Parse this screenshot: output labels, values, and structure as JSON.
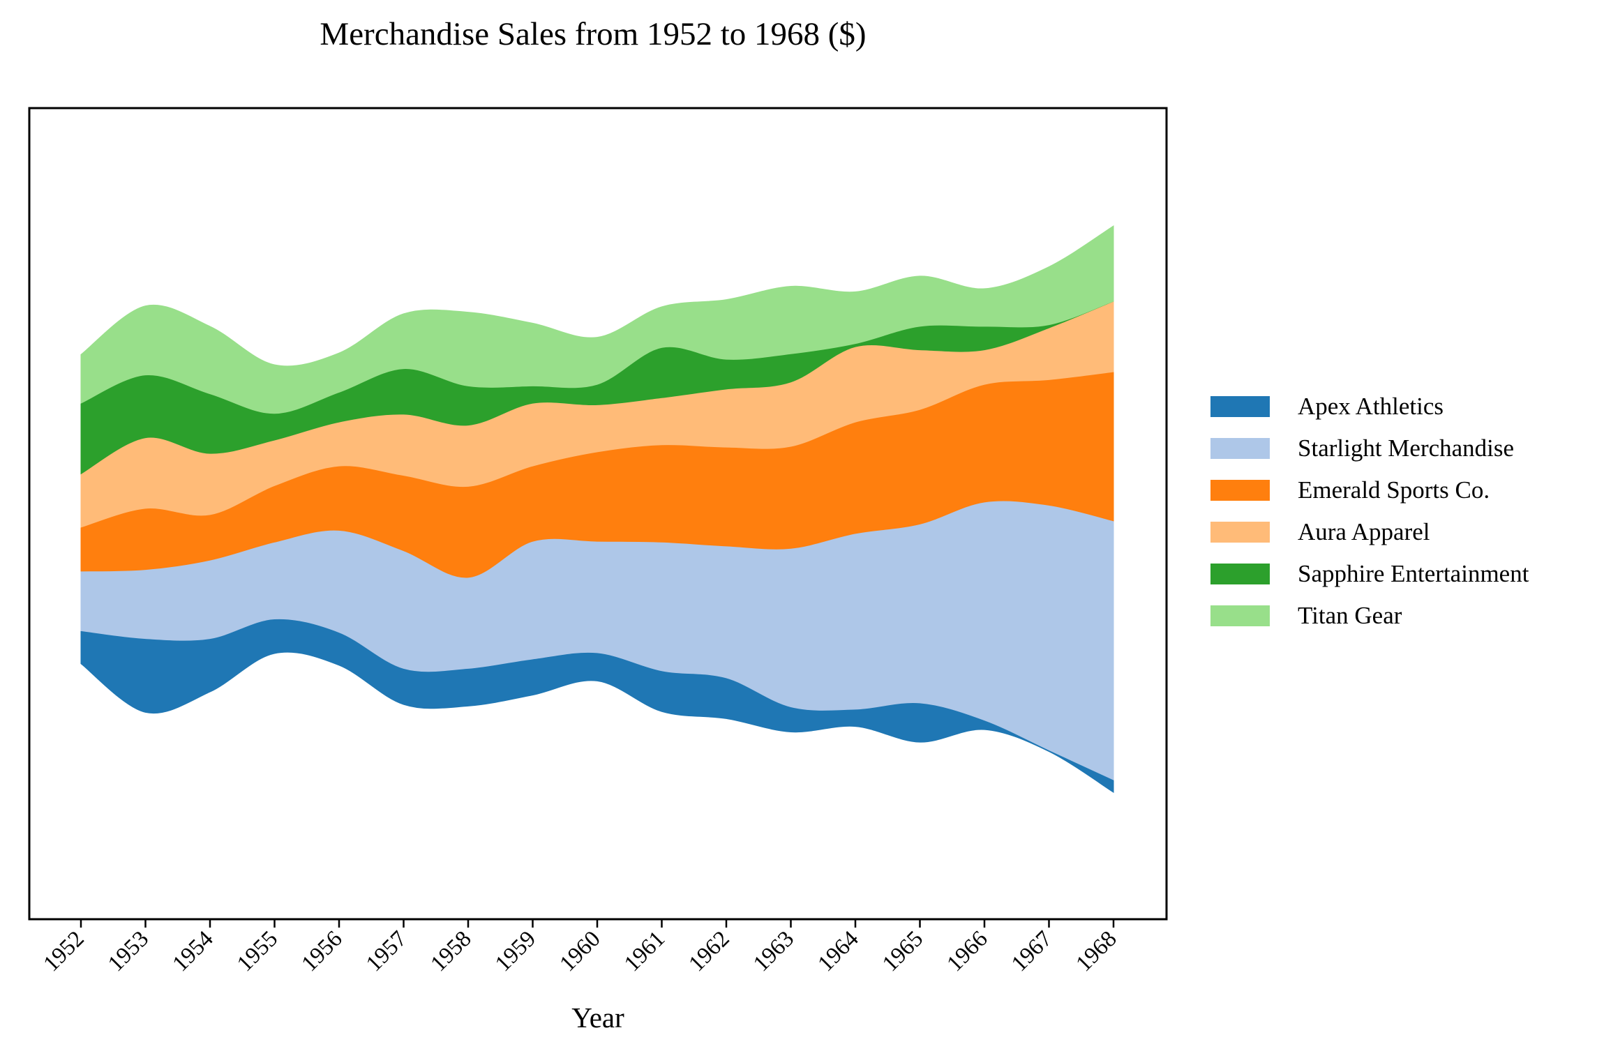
{
  "chart_data": {
    "type": "area",
    "subtype": "streamgraph",
    "title": "Merchandise Sales from 1952 to 1968 ($)",
    "xlabel": "Year",
    "ylabel": "",
    "grid": false,
    "y_ticks_visible": false,
    "legend_position": "right",
    "categories": [
      "1952",
      "1953",
      "1954",
      "1955",
      "1956",
      "1957",
      "1958",
      "1959",
      "1960",
      "1961",
      "1962",
      "1963",
      "1964",
      "1965",
      "1966",
      "1967",
      "1968"
    ],
    "series": [
      {
        "name": "Apex Athletics",
        "color": "#1f77b4",
        "values": [
          2100,
          4700,
          3400,
          2200,
          2100,
          2300,
          2400,
          2300,
          1800,
          2600,
          2600,
          1600,
          1100,
          2500,
          600,
          100,
          800
        ]
      },
      {
        "name": "Starlight Merchandise",
        "color": "#aec7e8",
        "values": [
          3800,
          4400,
          5000,
          4900,
          6500,
          7500,
          5800,
          7500,
          7100,
          8200,
          8400,
          10100,
          11200,
          11400,
          13900,
          15600,
          16500
        ]
      },
      {
        "name": "Emerald Sports Co.",
        "color": "#ff7f0e",
        "values": [
          2800,
          3900,
          2900,
          3600,
          4100,
          4800,
          5800,
          4800,
          5700,
          6200,
          6300,
          6500,
          7100,
          7300,
          7500,
          8000,
          9500
        ]
      },
      {
        "name": "Aura Apparel",
        "color": "#ffbb78",
        "values": [
          3400,
          4500,
          3900,
          2900,
          2800,
          3900,
          3900,
          4000,
          3000,
          3000,
          3700,
          4100,
          4800,
          3800,
          2200,
          3300,
          4500
        ]
      },
      {
        "name": "Sapphire Entertainment",
        "color": "#2ca02c",
        "values": [
          4500,
          4000,
          3800,
          1700,
          1900,
          2900,
          2500,
          1100,
          1300,
          3200,
          1900,
          1800,
          200,
          1500,
          1500,
          200,
          0
        ]
      },
      {
        "name": "Titan Gear",
        "color": "#98df8a",
        "values": [
          3100,
          4400,
          4300,
          3100,
          2500,
          3500,
          4700,
          4000,
          3000,
          2600,
          3800,
          4300,
          3300,
          3200,
          2400,
          3700,
          4800
        ]
      }
    ]
  }
}
